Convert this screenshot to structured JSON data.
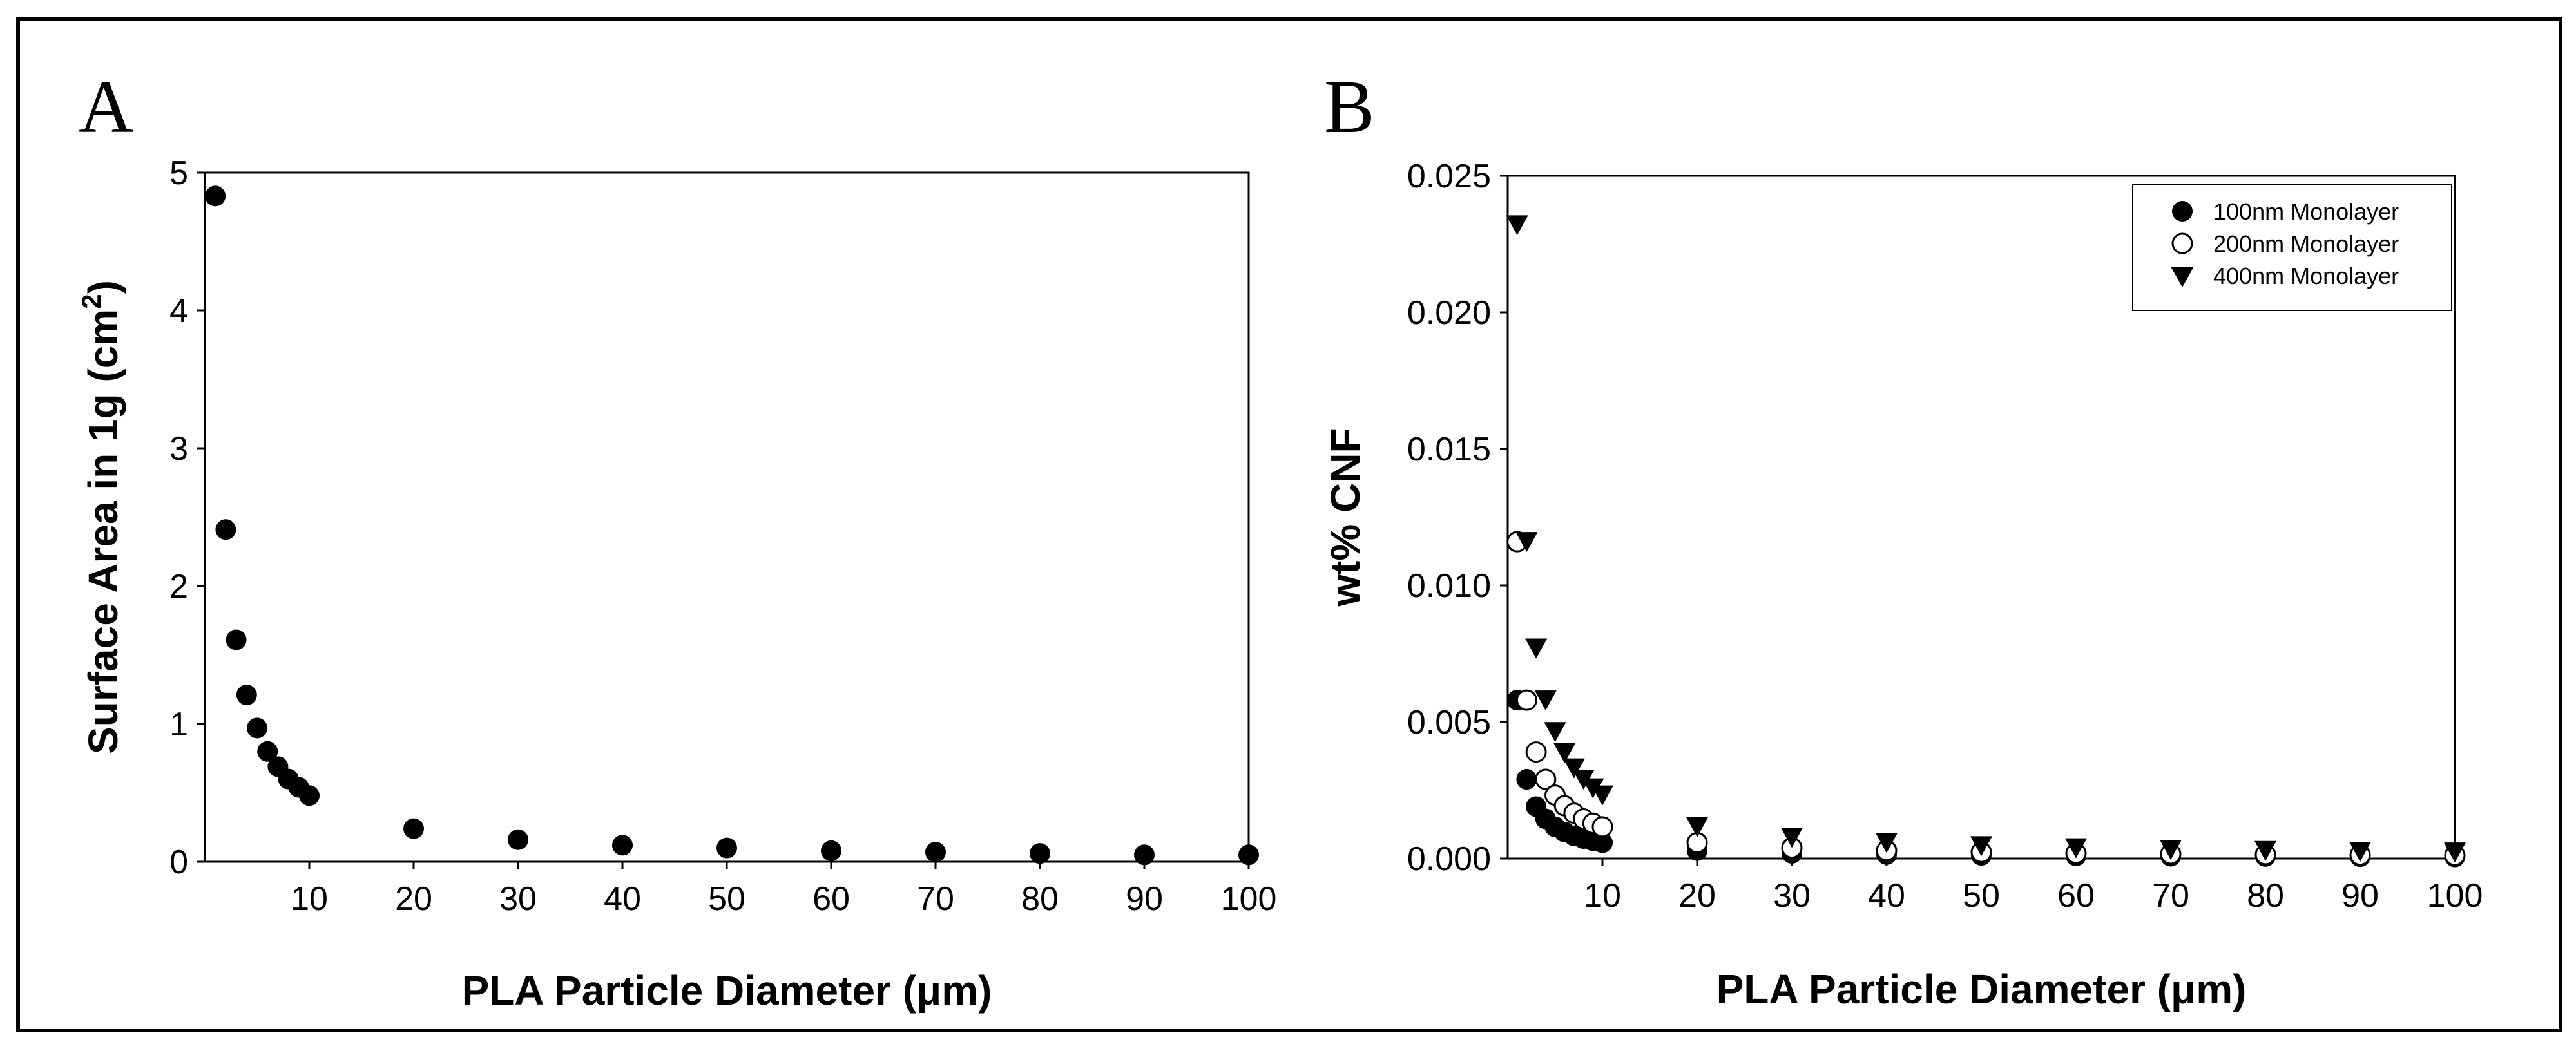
{
  "chart_data": [
    {
      "panel": "A",
      "type": "scatter",
      "title": "",
      "xlabel": "PLA Particle Diameter (μm)",
      "ylabel_main": "Surface Area in 1g (cm",
      "ylabel_sup": "2",
      "ylabel_end": ")",
      "xlim": [
        0,
        100
      ],
      "ylim": [
        0,
        5
      ],
      "xticks": [
        10,
        20,
        30,
        40,
        50,
        60,
        70,
        80,
        90,
        100
      ],
      "yticks": [
        0,
        1,
        2,
        3,
        4,
        5
      ],
      "ytick_labels": [
        "0",
        "1",
        "2",
        "3",
        "4",
        "5"
      ],
      "grid": false,
      "series": [
        {
          "name": "Surface Area",
          "marker": "filled-circle",
          "x": [
            1,
            2,
            3,
            4,
            5,
            6,
            7,
            8,
            9,
            10,
            20,
            30,
            40,
            50,
            60,
            70,
            80,
            90,
            100
          ],
          "y": [
            4.83,
            2.41,
            1.61,
            1.21,
            0.97,
            0.8,
            0.69,
            0.6,
            0.54,
            0.48,
            0.24,
            0.16,
            0.12,
            0.1,
            0.08,
            0.07,
            0.06,
            0.05,
            0.05
          ]
        }
      ]
    },
    {
      "panel": "B",
      "type": "scatter",
      "title": "",
      "xlabel": "PLA Particle Diameter (μm)",
      "ylabel": "wt% CNF",
      "xlim": [
        0,
        100
      ],
      "ylim": [
        0,
        0.025
      ],
      "xticks": [
        10,
        20,
        30,
        40,
        50,
        60,
        70,
        80,
        90,
        100
      ],
      "yticks": [
        0,
        0.005,
        0.01,
        0.015,
        0.02,
        0.025
      ],
      "ytick_labels": [
        "0.000",
        "0.005",
        "0.010",
        "0.015",
        "0.020",
        "0.025"
      ],
      "grid": false,
      "legend_position": "top-right",
      "series": [
        {
          "name": "100nm Monolayer",
          "marker": "filled-circle",
          "x": [
            1,
            2,
            3,
            4,
            5,
            6,
            7,
            8,
            9,
            10,
            20,
            30,
            40,
            50,
            60,
            70,
            80,
            90,
            100
          ],
          "y": [
            0.0058,
            0.0029,
            0.0019,
            0.00145,
            0.00116,
            0.00097,
            0.00083,
            0.00073,
            0.00065,
            0.00058,
            0.00029,
            0.00019,
            0.000145,
            0.000116,
            9.7e-05,
            8.3e-05,
            7.3e-05,
            6.5e-05,
            5.8e-05
          ]
        },
        {
          "name": "200nm Monolayer",
          "marker": "open-circle",
          "x": [
            1,
            2,
            3,
            4,
            5,
            6,
            7,
            8,
            9,
            10,
            20,
            30,
            40,
            50,
            60,
            70,
            80,
            90,
            100
          ],
          "y": [
            0.0116,
            0.0058,
            0.0039,
            0.0029,
            0.00232,
            0.00193,
            0.00166,
            0.00145,
            0.00129,
            0.00116,
            0.00058,
            0.00039,
            0.00029,
            0.000232,
            0.000193,
            0.000166,
            0.000145,
            0.000129,
            0.000116
          ]
        },
        {
          "name": "400nm Monolayer",
          "marker": "filled-triangle-down",
          "x": [
            1,
            2,
            3,
            4,
            5,
            6,
            7,
            8,
            9,
            10,
            20,
            30,
            40,
            50,
            60,
            70,
            80,
            90,
            100
          ],
          "y": [
            0.0232,
            0.0116,
            0.0077,
            0.0058,
            0.00464,
            0.00387,
            0.00331,
            0.0029,
            0.00258,
            0.00232,
            0.00116,
            0.00077,
            0.00058,
            0.000464,
            0.000387,
            0.000331,
            0.00029,
            0.000258,
            0.000232
          ]
        }
      ]
    }
  ]
}
